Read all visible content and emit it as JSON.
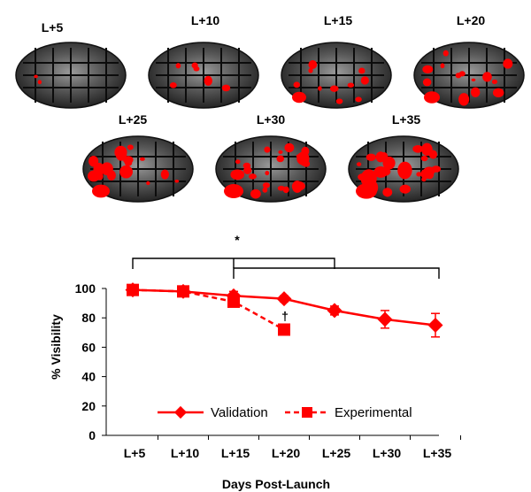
{
  "retina_panels": {
    "labels": [
      "L+5",
      "L+10",
      "L+15",
      "L+20",
      "L+25",
      "L+30",
      "L+35"
    ],
    "highlight_color": "#ff0000",
    "background_color": "#2b2b2b"
  },
  "chart_data": {
    "type": "line",
    "categories": [
      "L+5",
      "L+10",
      "L+15",
      "L+20",
      "L+25",
      "L+30",
      "L+35"
    ],
    "xlabel": "Days Post-Launch",
    "ylabel": "% Visibility",
    "ylim": [
      0,
      100
    ],
    "yticks": [
      "0",
      "20",
      "40",
      "60",
      "80",
      "100"
    ],
    "grid": false,
    "legend_position": "bottom",
    "series": [
      {
        "name": "Validation",
        "values": [
          99,
          98,
          95,
          93,
          85,
          79,
          75
        ],
        "errors": [
          2,
          2,
          3,
          2,
          3,
          6,
          8
        ],
        "color": "#ff0000",
        "line_style": "solid",
        "marker": "diamond-icon"
      },
      {
        "name": "Experimental",
        "values": [
          99,
          98,
          91,
          72,
          null,
          null,
          null
        ],
        "errors": [
          2,
          2,
          3,
          3,
          null,
          null,
          null
        ],
        "color": "#ff0000",
        "line_style": "dashed",
        "marker": "square-icon"
      }
    ],
    "annotations": {
      "significance_star": "*",
      "dagger": "†"
    }
  }
}
